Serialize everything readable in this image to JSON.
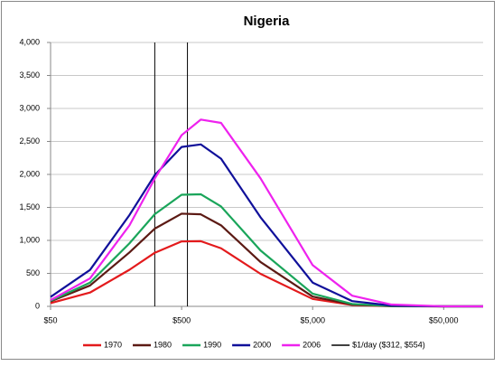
{
  "chart_data": {
    "type": "line",
    "title": "Nigeria",
    "x": [
      50,
      100,
      200,
      312,
      500,
      700,
      1000,
      2000,
      5000,
      10000,
      20000,
      50000,
      100000
    ],
    "xlog": true,
    "xlim": [
      50,
      100000
    ],
    "xticks": [
      {
        "value": 50,
        "label": "$50"
      },
      {
        "value": 500,
        "label": "$500"
      },
      {
        "value": 5000,
        "label": "$5,000"
      },
      {
        "value": 50000,
        "label": "$50,000"
      }
    ],
    "ylim": [
      0,
      4000
    ],
    "yticks": [
      0,
      500,
      {
        "value": 1000,
        "label": "1,000"
      },
      {
        "value": 1500,
        "label": "1,500"
      },
      {
        "value": 2000,
        "label": "2,000"
      },
      {
        "value": 2500,
        "label": "2,500"
      },
      {
        "value": 3000,
        "label": "3,000"
      },
      {
        "value": 3500,
        "label": "3,500"
      },
      {
        "value": 4000,
        "label": "4,000"
      }
    ],
    "grid": true,
    "series": [
      {
        "name": "1970",
        "color": "#e31a1c",
        "values": [
          49,
          209,
          555,
          812,
          984,
          988,
          880,
          493,
          112,
          21,
          2,
          0,
          0
        ]
      },
      {
        "name": "1980",
        "color": "#5c1a14",
        "values": [
          76,
          316,
          818,
          1178,
          1405,
          1395,
          1228,
          672,
          148,
          27,
          3,
          0,
          0
        ]
      },
      {
        "name": "1990",
        "color": "#1aa55a",
        "values": [
          84,
          360,
          955,
          1397,
          1692,
          1699,
          1514,
          848,
          193,
          36,
          4,
          0,
          0
        ]
      },
      {
        "name": "2000",
        "color": "#10109a",
        "values": [
          143,
          552,
          1384,
          1990,
          2416,
          2455,
          2238,
          1351,
          360,
          80,
          12,
          0,
          0
        ]
      },
      {
        "name": "2006",
        "color": "#ee22ee",
        "values": [
          95,
          424,
          1228,
          1937,
          2595,
          2831,
          2781,
          1941,
          625,
          162,
          27,
          1,
          0
        ]
      }
    ],
    "reference_lines": {
      "name": "$1/day ($312, $554)",
      "color": "#000000",
      "x": [
        312,
        554
      ]
    }
  }
}
